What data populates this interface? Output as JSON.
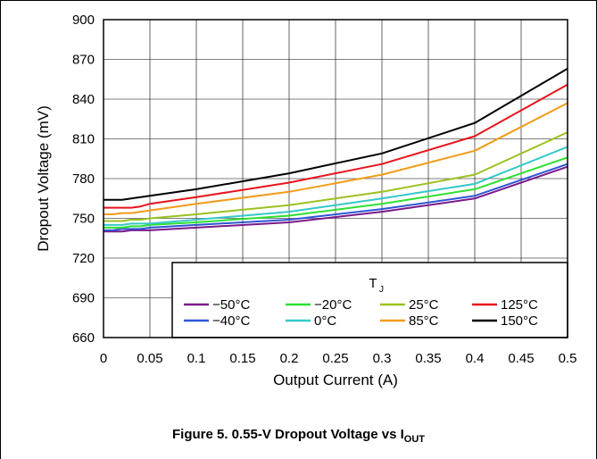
{
  "chart_data": {
    "type": "line",
    "xlabel": "Output Current (A)",
    "ylabel": "Dropout Voltage (mV)",
    "xlim": [
      0,
      0.5
    ],
    "ylim": [
      660,
      900
    ],
    "xticks": [
      0,
      0.05,
      0.1,
      0.15,
      0.2,
      0.25,
      0.3,
      0.35,
      0.4,
      0.45,
      0.5
    ],
    "xtick_labels": [
      "0",
      "0.05",
      "0.1",
      "0.15",
      "0.2",
      "0.25",
      "0.3",
      "0.35",
      "0.4",
      "0.45",
      "0.5"
    ],
    "yticks": [
      660,
      690,
      720,
      750,
      780,
      810,
      840,
      870,
      900
    ],
    "ytick_labels": [
      "660",
      "690",
      "720",
      "750",
      "780",
      "810",
      "840",
      "870",
      "900"
    ],
    "grid": true,
    "legend_title": "T",
    "legend_title_sub": "J",
    "legend_placement": "bottom-right",
    "x": [
      0,
      0.01,
      0.02,
      0.03,
      0.04,
      0.05,
      0.1,
      0.2,
      0.3,
      0.4,
      0.5
    ],
    "series": [
      {
        "name": "−50°C",
        "color": "#7b1a8a",
        "values": [
          740,
          740,
          740,
          741,
          741,
          741,
          743,
          747,
          755,
          765,
          789
        ]
      },
      {
        "name": "−40°C",
        "color": "#2f57d6",
        "values": [
          741,
          741,
          742,
          742,
          742,
          743,
          745,
          749,
          757,
          767,
          791
        ]
      },
      {
        "name": "−20°C",
        "color": "#2ee032",
        "values": [
          743,
          743,
          743,
          744,
          744,
          745,
          747,
          752,
          761,
          772,
          796
        ]
      },
      {
        "name": "0°C",
        "color": "#35c8c8",
        "values": [
          745,
          745,
          745,
          746,
          746,
          746,
          749,
          755,
          765,
          776,
          804
        ]
      },
      {
        "name": "25°C",
        "color": "#9ac21e",
        "values": [
          748,
          748,
          748,
          749,
          749,
          750,
          753,
          760,
          770,
          783,
          815
        ]
      },
      {
        "name": "85°C",
        "color": "#f29b18",
        "values": [
          753,
          753,
          754,
          754,
          755,
          756,
          761,
          770,
          783,
          801,
          837
        ]
      },
      {
        "name": "125°C",
        "color": "#e8141c",
        "values": [
          758,
          758,
          758,
          758,
          759,
          761,
          766,
          777,
          791,
          812,
          851
        ]
      },
      {
        "name": "150°C",
        "color": "#000000",
        "values": [
          764,
          764,
          764,
          765,
          766,
          767,
          772,
          784,
          799,
          822,
          863
        ]
      }
    ]
  },
  "caption": {
    "prefix": "Figure 5. 0.55-V Dropout Voltage vs I",
    "sub": "OUT"
  }
}
